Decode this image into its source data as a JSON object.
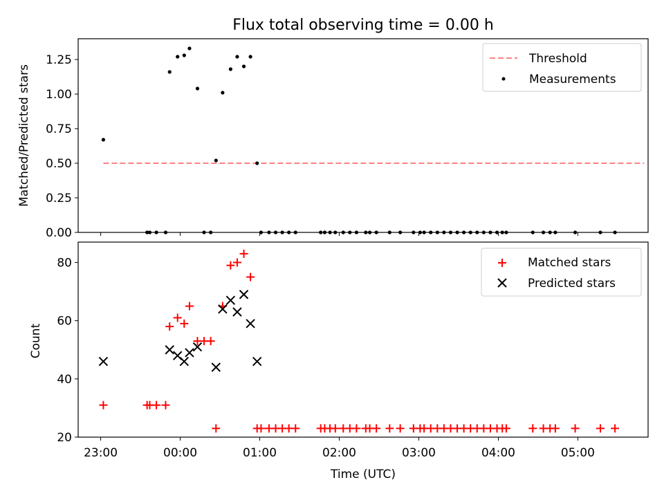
{
  "title": "Flux total observing time = 0.00 h",
  "xlabel": "Time (UTC)",
  "x_ticks": [
    "23:00",
    "00:00",
    "01:00",
    "02:00",
    "03:00",
    "04:00",
    "05:00"
  ],
  "chart_data": [
    {
      "type": "scatter",
      "ylabel": "Matched/Predicted stars",
      "xlim": [
        "22:43",
        "05:53"
      ],
      "ylim": [
        0,
        1.4
      ],
      "y_ticks": [
        "0.00",
        "0.25",
        "0.50",
        "0.75",
        "1.00",
        "1.25"
      ],
      "legend_position": "top-right",
      "threshold": {
        "name": "Threshold",
        "value": 0.5,
        "x": [
          "23:02",
          "05:50"
        ],
        "color": "#ff8080"
      },
      "series": [
        {
          "name": "Measurements",
          "color": "#000000",
          "points": [
            {
              "x": "23:02",
              "y": 0.67
            },
            {
              "x": "23:35",
              "y": 0
            },
            {
              "x": "23:37",
              "y": 0
            },
            {
              "x": "23:42",
              "y": 0
            },
            {
              "x": "23:49",
              "y": 0
            },
            {
              "x": "23:52",
              "y": 1.16
            },
            {
              "x": "23:58",
              "y": 1.27
            },
            {
              "x": "00:03",
              "y": 1.28
            },
            {
              "x": "00:07",
              "y": 1.33
            },
            {
              "x": "00:13",
              "y": 1.04
            },
            {
              "x": "00:18",
              "y": 0
            },
            {
              "x": "00:23",
              "y": 0
            },
            {
              "x": "00:27",
              "y": 0.52
            },
            {
              "x": "00:32",
              "y": 1.01
            },
            {
              "x": "00:38",
              "y": 1.18
            },
            {
              "x": "00:43",
              "y": 1.27
            },
            {
              "x": "00:48",
              "y": 1.2
            },
            {
              "x": "00:53",
              "y": 1.27
            },
            {
              "x": "00:58",
              "y": 0.5
            },
            {
              "x": "01:01",
              "y": 0
            },
            {
              "x": "01:07",
              "y": 0
            },
            {
              "x": "01:12",
              "y": 0
            },
            {
              "x": "01:17",
              "y": 0
            },
            {
              "x": "01:22",
              "y": 0
            },
            {
              "x": "01:27",
              "y": 0
            },
            {
              "x": "01:46",
              "y": 0
            },
            {
              "x": "01:49",
              "y": 0
            },
            {
              "x": "01:53",
              "y": 0
            },
            {
              "x": "01:57",
              "y": 0
            },
            {
              "x": "02:03",
              "y": 0
            },
            {
              "x": "02:08",
              "y": 0
            },
            {
              "x": "02:13",
              "y": 0
            },
            {
              "x": "02:20",
              "y": 0
            },
            {
              "x": "02:23",
              "y": 0
            },
            {
              "x": "02:28",
              "y": 0
            },
            {
              "x": "02:38",
              "y": 0
            },
            {
              "x": "02:46",
              "y": 0
            },
            {
              "x": "02:56",
              "y": 0
            },
            {
              "x": "03:01",
              "y": 0
            },
            {
              "x": "03:04",
              "y": 0
            },
            {
              "x": "03:09",
              "y": 0
            },
            {
              "x": "03:14",
              "y": 0
            },
            {
              "x": "03:19",
              "y": 0
            },
            {
              "x": "03:24",
              "y": 0
            },
            {
              "x": "03:29",
              "y": 0
            },
            {
              "x": "03:34",
              "y": 0
            },
            {
              "x": "03:39",
              "y": 0
            },
            {
              "x": "03:44",
              "y": 0
            },
            {
              "x": "03:49",
              "y": 0
            },
            {
              "x": "03:54",
              "y": 0
            },
            {
              "x": "03:59",
              "y": 0
            },
            {
              "x": "04:03",
              "y": 0
            },
            {
              "x": "04:06",
              "y": 0
            },
            {
              "x": "04:26",
              "y": 0
            },
            {
              "x": "04:34",
              "y": 0
            },
            {
              "x": "04:39",
              "y": 0
            },
            {
              "x": "04:43",
              "y": 0
            },
            {
              "x": "04:58",
              "y": 0
            },
            {
              "x": "05:17",
              "y": 0
            },
            {
              "x": "05:28",
              "y": 0
            }
          ]
        }
      ]
    },
    {
      "type": "scatter",
      "ylabel": "Count",
      "xlim": [
        "22:43",
        "05:53"
      ],
      "ylim": [
        20,
        87
      ],
      "y_ticks": [
        "20",
        "40",
        "60",
        "80"
      ],
      "legend_position": "top-right",
      "series": [
        {
          "name": "Matched stars",
          "marker": "plus",
          "color": "#ff0000",
          "points": [
            {
              "x": "23:02",
              "y": 31
            },
            {
              "x": "23:35",
              "y": 31
            },
            {
              "x": "23:37",
              "y": 31
            },
            {
              "x": "23:42",
              "y": 31
            },
            {
              "x": "23:49",
              "y": 31
            },
            {
              "x": "23:52",
              "y": 58
            },
            {
              "x": "23:58",
              "y": 61
            },
            {
              "x": "00:03",
              "y": 59
            },
            {
              "x": "00:07",
              "y": 65
            },
            {
              "x": "00:13",
              "y": 53
            },
            {
              "x": "00:18",
              "y": 53
            },
            {
              "x": "00:23",
              "y": 53
            },
            {
              "x": "00:27",
              "y": 23
            },
            {
              "x": "00:32",
              "y": 65
            },
            {
              "x": "00:38",
              "y": 79
            },
            {
              "x": "00:43",
              "y": 80
            },
            {
              "x": "00:48",
              "y": 83
            },
            {
              "x": "00:53",
              "y": 75
            },
            {
              "x": "00:58",
              "y": 23
            },
            {
              "x": "01:01",
              "y": 23
            },
            {
              "x": "01:07",
              "y": 23
            },
            {
              "x": "01:12",
              "y": 23
            },
            {
              "x": "01:17",
              "y": 23
            },
            {
              "x": "01:22",
              "y": 23
            },
            {
              "x": "01:27",
              "y": 23
            },
            {
              "x": "01:46",
              "y": 23
            },
            {
              "x": "01:49",
              "y": 23
            },
            {
              "x": "01:53",
              "y": 23
            },
            {
              "x": "01:57",
              "y": 23
            },
            {
              "x": "02:03",
              "y": 23
            },
            {
              "x": "02:08",
              "y": 23
            },
            {
              "x": "02:13",
              "y": 23
            },
            {
              "x": "02:20",
              "y": 23
            },
            {
              "x": "02:23",
              "y": 23
            },
            {
              "x": "02:28",
              "y": 23
            },
            {
              "x": "02:38",
              "y": 23
            },
            {
              "x": "02:46",
              "y": 23
            },
            {
              "x": "02:56",
              "y": 23
            },
            {
              "x": "03:01",
              "y": 23
            },
            {
              "x": "03:04",
              "y": 23
            },
            {
              "x": "03:09",
              "y": 23
            },
            {
              "x": "03:14",
              "y": 23
            },
            {
              "x": "03:19",
              "y": 23
            },
            {
              "x": "03:24",
              "y": 23
            },
            {
              "x": "03:29",
              "y": 23
            },
            {
              "x": "03:34",
              "y": 23
            },
            {
              "x": "03:39",
              "y": 23
            },
            {
              "x": "03:44",
              "y": 23
            },
            {
              "x": "03:49",
              "y": 23
            },
            {
              "x": "03:54",
              "y": 23
            },
            {
              "x": "03:59",
              "y": 23
            },
            {
              "x": "04:03",
              "y": 23
            },
            {
              "x": "04:06",
              "y": 23
            },
            {
              "x": "04:26",
              "y": 23
            },
            {
              "x": "04:34",
              "y": 23
            },
            {
              "x": "04:39",
              "y": 23
            },
            {
              "x": "04:43",
              "y": 23
            },
            {
              "x": "04:58",
              "y": 23
            },
            {
              "x": "05:17",
              "y": 23
            },
            {
              "x": "05:28",
              "y": 23
            }
          ]
        },
        {
          "name": "Predicted stars",
          "marker": "x",
          "color": "#000000",
          "points": [
            {
              "x": "23:02",
              "y": 46
            },
            {
              "x": "23:52",
              "y": 50
            },
            {
              "x": "23:58",
              "y": 48
            },
            {
              "x": "00:03",
              "y": 46
            },
            {
              "x": "00:07",
              "y": 49
            },
            {
              "x": "00:13",
              "y": 51
            },
            {
              "x": "00:27",
              "y": 44
            },
            {
              "x": "00:32",
              "y": 64
            },
            {
              "x": "00:38",
              "y": 67
            },
            {
              "x": "00:43",
              "y": 63
            },
            {
              "x": "00:48",
              "y": 69
            },
            {
              "x": "00:53",
              "y": 59
            },
            {
              "x": "00:58",
              "y": 46
            }
          ]
        }
      ]
    }
  ]
}
